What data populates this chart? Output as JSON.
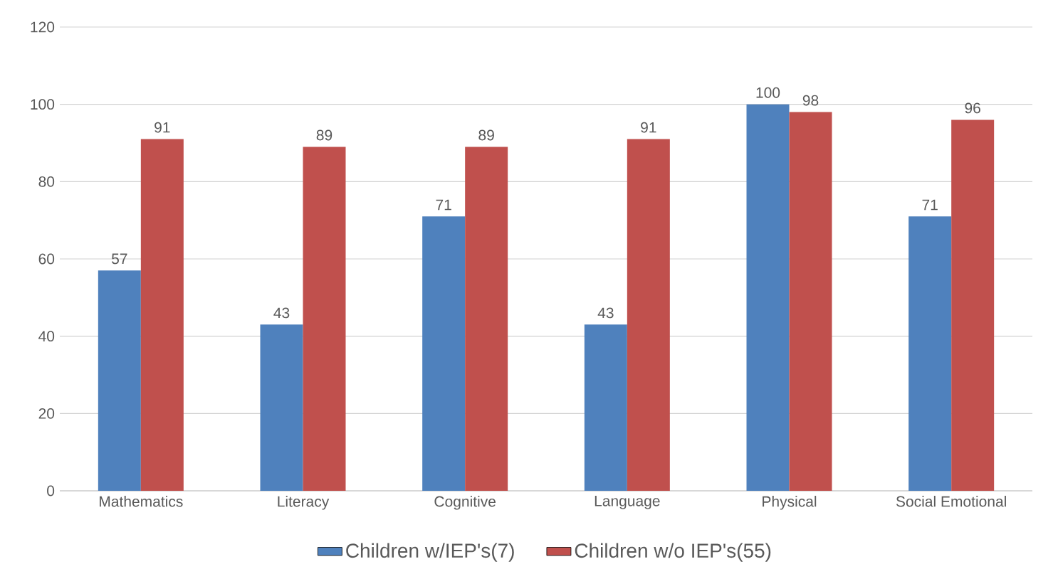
{
  "chart_data": {
    "type": "bar",
    "categories": [
      "Mathematics",
      "Literacy",
      "Cognitive",
      "Language",
      "Physical",
      "Social Emotional"
    ],
    "series": [
      {
        "name": "Children w/IEP's(7)",
        "color": "#4f81bd",
        "values": [
          57,
          43,
          71,
          43,
          100,
          71
        ]
      },
      {
        "name": "Children w/o IEP's(55)",
        "color": "#c0504d",
        "values": [
          91,
          89,
          89,
          91,
          98,
          96
        ]
      }
    ],
    "ylim": [
      0,
      120
    ],
    "yticks": [
      0,
      20,
      40,
      60,
      80,
      100,
      120
    ],
    "grid": "y",
    "legend": "bottom",
    "data_labels": true
  }
}
